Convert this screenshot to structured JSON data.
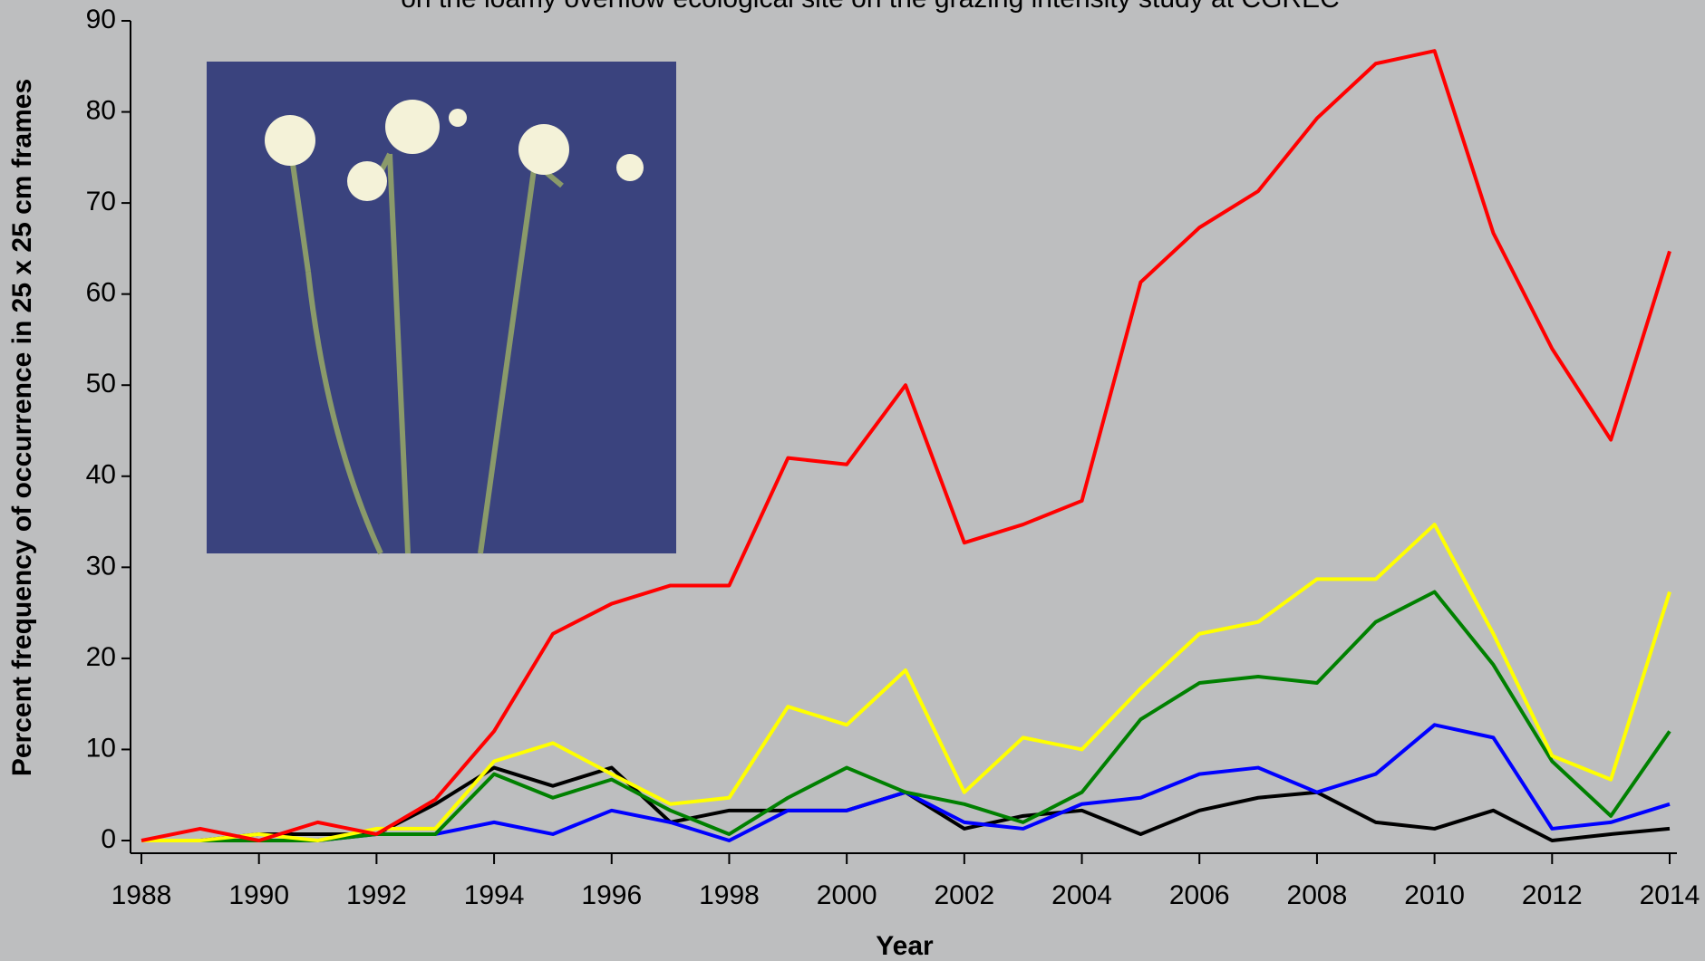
{
  "chart_data": {
    "type": "line",
    "title": "on the loamy overflow ecological site on the grazing intensity study at CGREC",
    "x_label": "Year",
    "y_label": "Percent frequency of occurrence in 25 x 25 cm frames",
    "x": [
      1988,
      1989,
      1990,
      1991,
      1992,
      1993,
      1994,
      1995,
      1996,
      1997,
      1998,
      1999,
      2000,
      2001,
      2002,
      2003,
      2004,
      2005,
      2006,
      2007,
      2008,
      2009,
      2010,
      2011,
      2012,
      2013,
      2014
    ],
    "xlim": [
      1988,
      2014
    ],
    "xticks": [
      1988,
      1990,
      1992,
      1994,
      1996,
      1998,
      2000,
      2002,
      2004,
      2006,
      2008,
      2010,
      2012,
      2014
    ],
    "ylim": [
      0,
      90
    ],
    "yticks": [
      0,
      10,
      20,
      30,
      40,
      50,
      60,
      70,
      80,
      90
    ],
    "series": [
      {
        "color": "#000000",
        "values": [
          0,
          0,
          0.7,
          0.7,
          0.7,
          4,
          8,
          6,
          8,
          2,
          3.3,
          3.3,
          3.3,
          5.3,
          1.3,
          2.7,
          3.3,
          0.7,
          3.3,
          4.7,
          5.3,
          2,
          1.3,
          3.3,
          0,
          0.7,
          1.3
        ]
      },
      {
        "color": "#0000ff",
        "values": [
          0,
          0,
          0,
          0,
          0.7,
          0.7,
          2,
          0.7,
          3.3,
          2,
          0,
          3.3,
          3.3,
          5.3,
          2,
          1.3,
          4,
          4.7,
          7.3,
          8,
          5.3,
          7.3,
          12.7,
          11.3,
          1.3,
          2,
          4
        ]
      },
      {
        "color": "#008000",
        "values": [
          0,
          0,
          0,
          0,
          0.7,
          0.7,
          7.3,
          4.7,
          6.7,
          3.3,
          0.7,
          4.7,
          8,
          5.3,
          4,
          2,
          5.3,
          13.3,
          17.3,
          18,
          17.3,
          24,
          27.3,
          19.3,
          8.7,
          2.7,
          12
        ]
      },
      {
        "color": "#ffff00",
        "values": [
          0,
          0,
          0.7,
          0,
          1.3,
          1.3,
          8.7,
          10.7,
          7.3,
          4,
          4.7,
          14.7,
          12.7,
          18.7,
          5.3,
          11.3,
          10,
          16.7,
          22.7,
          24,
          28.7,
          28.7,
          34.7,
          22.7,
          9.3,
          6.7,
          27.3
        ]
      },
      {
        "color": "#ff0000",
        "values": [
          0,
          1.3,
          0,
          2,
          0.7,
          4.5,
          12,
          22.7,
          26,
          28,
          28,
          42,
          41.3,
          50,
          32.7,
          34.7,
          37.3,
          61.3,
          67.3,
          71.3,
          79.3,
          85.3,
          86.7,
          66.7,
          54,
          44,
          64.7
        ]
      }
    ]
  }
}
